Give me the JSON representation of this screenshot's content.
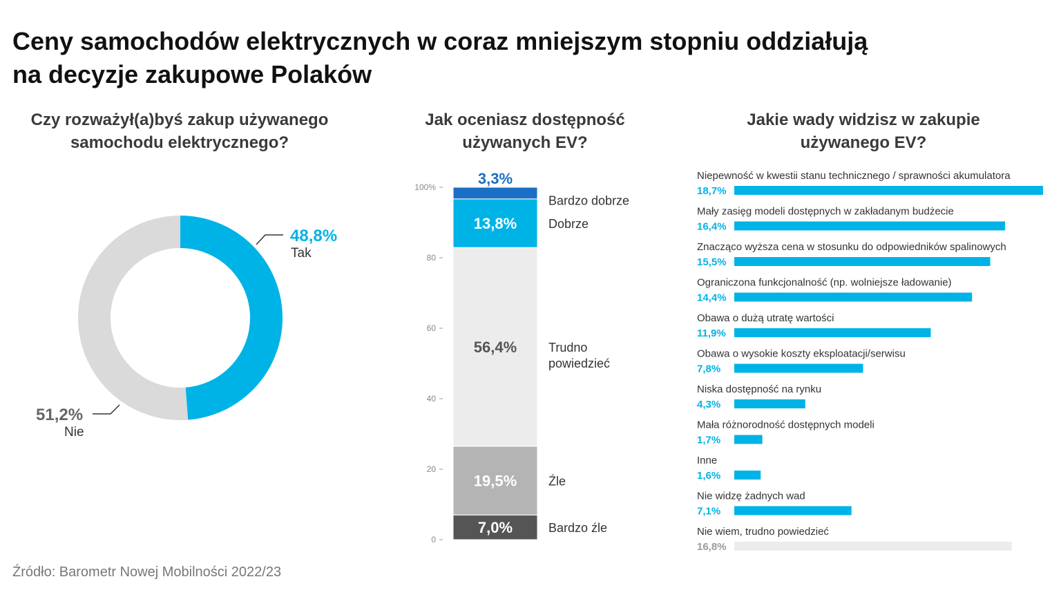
{
  "title_line1": "Ceny samochodów elektrycznych w coraz mniejszym stopniu oddziałują",
  "title_line2": "na decyzje zakupowe Polaków",
  "source": "Źródło: Barometr Nowej Mobilności 2022/23",
  "colors": {
    "accent": "#00B3E6",
    "dark_blue": "#1A6FC4",
    "light_gray": "#ECECEC",
    "donut_gray": "#DADADA",
    "mid_gray": "#B4B4B4",
    "dark_gray": "#555555",
    "pct_gray": "#666666"
  },
  "chart_data": [
    {
      "type": "pie",
      "subtitle_line1": "Czy rozważył(a)byś zakup używanego",
      "subtitle_line2": "samochodu elektrycznego?",
      "slices": [
        {
          "label": "Tak",
          "value": 48.8,
          "value_text": "48,8%"
        },
        {
          "label": "Nie",
          "value": 51.2,
          "value_text": "51,2%"
        }
      ]
    },
    {
      "type": "bar",
      "stacked": true,
      "subtitle_line1": "Jak oceniasz dostępność",
      "subtitle_line2": "używanych EV?",
      "ylim": [
        0,
        100
      ],
      "yticks": [
        0,
        20,
        40,
        60,
        80,
        100
      ],
      "ytick_labels": [
        "0",
        "20",
        "40",
        "60",
        "80",
        "100%"
      ],
      "segments": [
        {
          "label": "Bardzo źle",
          "value": 7.0,
          "value_text": "7,0%"
        },
        {
          "label": "Źle",
          "value": 19.5,
          "value_text": "19,5%"
        },
        {
          "label": "Trudno powiedzieć",
          "label_line1": "Trudno",
          "label_line2": "powiedzieć",
          "value": 56.4,
          "value_text": "56,4%"
        },
        {
          "label": "Dobrze",
          "value": 13.8,
          "value_text": "13,8%"
        },
        {
          "label": "Bardzo dobrze",
          "value": 3.3,
          "value_text": "3,3%"
        }
      ]
    },
    {
      "type": "bar",
      "orientation": "horizontal",
      "subtitle_line1": "Jakie wady widzisz w zakupie",
      "subtitle_line2": "używanego EV?",
      "xlim": [
        0,
        18.7
      ],
      "categories": [
        "Niepewność w kwestii stanu technicznego / sprawności akumulatora",
        "Mały zasięg modeli dostępnych w zakładanym budżecie",
        "Znacząco wyższa cena w stosunku do odpowiedników spalinowych",
        "Ograniczona funkcjonalność (np. wolniejsze ładowanie)",
        "Obawa o dużą utratę wartości",
        "Obawa o wysokie koszty eksploatacji/serwisu",
        "Niska dostępność na rynku",
        "Mała różnorodność dostępnych modeli",
        "Inne",
        "Nie widzę żadnych wad",
        "Nie wiem, trudno powiedzieć"
      ],
      "values": [
        18.7,
        16.4,
        15.5,
        14.4,
        11.9,
        7.8,
        4.3,
        1.7,
        1.6,
        7.1,
        16.8
      ],
      "value_texts": [
        "18,7%",
        "16,4%",
        "15,5%",
        "14,4%",
        "11,9%",
        "7,8%",
        "4,3%",
        "1,7%",
        "1,6%",
        "7,1%",
        "16,8%"
      ],
      "muted": [
        false,
        false,
        false,
        false,
        false,
        false,
        false,
        false,
        false,
        false,
        true
      ]
    }
  ]
}
